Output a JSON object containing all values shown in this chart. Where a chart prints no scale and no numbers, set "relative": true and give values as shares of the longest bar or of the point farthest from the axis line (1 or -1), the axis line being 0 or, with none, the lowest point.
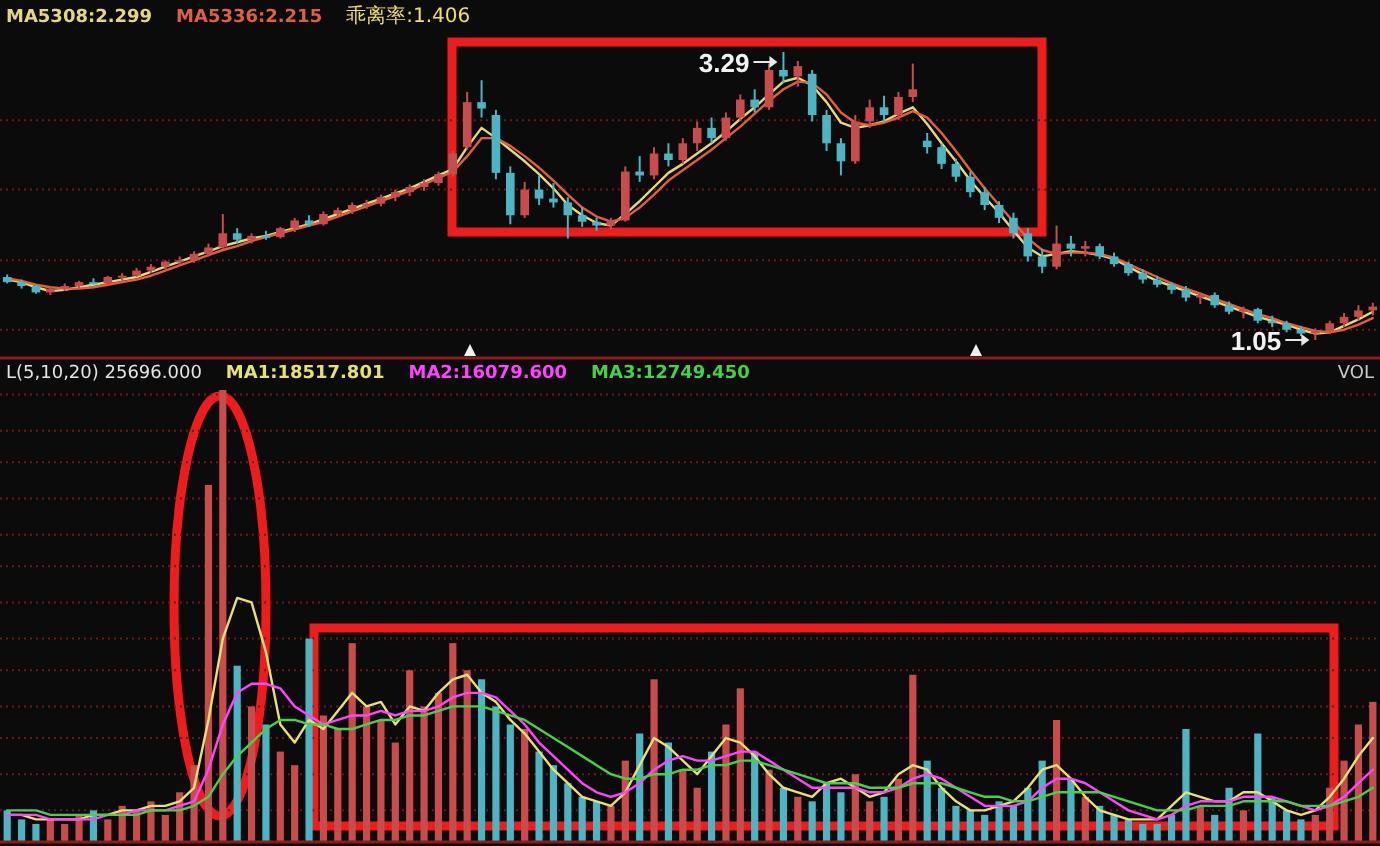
{
  "chart_data": [
    {
      "type": "candlestick",
      "categories": [
        null,
        null,
        null,
        null,
        null,
        null,
        null,
        null,
        null,
        null,
        null,
        null,
        null,
        null,
        null,
        null,
        null,
        null,
        null,
        null,
        null,
        null,
        null,
        null,
        null,
        null,
        null,
        null,
        null,
        null,
        null,
        null,
        null,
        null,
        null,
        null,
        null,
        null,
        null,
        null,
        null,
        null,
        null,
        null,
        null,
        null,
        null,
        null,
        null,
        null,
        null,
        null,
        null,
        null,
        null,
        null,
        null,
        null,
        null,
        null,
        null,
        null,
        null,
        null,
        null,
        null,
        null,
        null,
        null,
        null,
        null,
        null,
        null,
        null,
        null,
        null,
        null,
        null,
        null,
        null,
        null,
        null,
        null,
        null,
        null,
        null,
        null,
        null,
        null,
        null,
        null,
        null,
        null,
        null,
        null,
        null
      ],
      "ohlc": [
        [
          1.54,
          1.56,
          1.49,
          1.5
        ],
        [
          1.5,
          1.52,
          1.45,
          1.47
        ],
        [
          1.47,
          1.48,
          1.41,
          1.42
        ],
        [
          1.42,
          1.46,
          1.4,
          1.45
        ],
        [
          1.45,
          1.49,
          1.43,
          1.47
        ],
        [
          1.47,
          1.51,
          1.45,
          1.5
        ],
        [
          1.5,
          1.53,
          1.48,
          1.49
        ],
        [
          1.49,
          1.55,
          1.48,
          1.54
        ],
        [
          1.54,
          1.57,
          1.51,
          1.55
        ],
        [
          1.55,
          1.61,
          1.54,
          1.59
        ],
        [
          1.59,
          1.64,
          1.57,
          1.62
        ],
        [
          1.62,
          1.67,
          1.6,
          1.66
        ],
        [
          1.66,
          1.7,
          1.63,
          1.67
        ],
        [
          1.67,
          1.74,
          1.65,
          1.72
        ],
        [
          1.72,
          1.8,
          1.7,
          1.77
        ],
        [
          1.77,
          2.03,
          1.76,
          1.88
        ],
        [
          1.88,
          1.92,
          1.8,
          1.83
        ],
        [
          1.83,
          1.88,
          1.8,
          1.86
        ],
        [
          1.86,
          1.9,
          1.83,
          1.85
        ],
        [
          1.85,
          1.93,
          1.84,
          1.92
        ],
        [
          1.92,
          2.0,
          1.89,
          1.98
        ],
        [
          1.98,
          2.02,
          1.93,
          1.95
        ],
        [
          1.95,
          2.05,
          1.94,
          2.03
        ],
        [
          2.03,
          2.08,
          2.0,
          2.06
        ],
        [
          2.06,
          2.12,
          2.03,
          2.1
        ],
        [
          2.1,
          2.14,
          2.07,
          2.11
        ],
        [
          2.11,
          2.18,
          2.09,
          2.16
        ],
        [
          2.16,
          2.22,
          2.13,
          2.2
        ],
        [
          2.2,
          2.26,
          2.17,
          2.24
        ],
        [
          2.24,
          2.3,
          2.21,
          2.27
        ],
        [
          2.27,
          2.36,
          2.25,
          2.34
        ],
        [
          2.34,
          2.52,
          2.32,
          2.5
        ],
        [
          2.55,
          2.98,
          2.53,
          2.9
        ],
        [
          2.9,
          3.07,
          2.78,
          2.85
        ],
        [
          2.8,
          2.84,
          2.3,
          2.35
        ],
        [
          2.35,
          2.4,
          1.95,
          2.02
        ],
        [
          2.02,
          2.28,
          2.0,
          2.22
        ],
        [
          2.22,
          2.33,
          2.1,
          2.15
        ],
        [
          2.15,
          2.27,
          2.08,
          2.12
        ],
        [
          2.12,
          2.16,
          1.84,
          2.02
        ],
        [
          2.02,
          2.08,
          1.93,
          1.97
        ],
        [
          1.97,
          2.0,
          1.9,
          1.94
        ],
        [
          1.94,
          2.0,
          1.91,
          1.98
        ],
        [
          1.98,
          2.4,
          1.97,
          2.36
        ],
        [
          2.36,
          2.48,
          2.28,
          2.33
        ],
        [
          2.33,
          2.55,
          2.3,
          2.5
        ],
        [
          2.5,
          2.58,
          2.4,
          2.45
        ],
        [
          2.45,
          2.62,
          2.42,
          2.58
        ],
        [
          2.58,
          2.75,
          2.52,
          2.7
        ],
        [
          2.7,
          2.78,
          2.58,
          2.62
        ],
        [
          2.62,
          2.82,
          2.6,
          2.78
        ],
        [
          2.78,
          2.96,
          2.75,
          2.92
        ],
        [
          2.92,
          3.0,
          2.82,
          2.86
        ],
        [
          2.86,
          3.2,
          2.84,
          3.15
        ],
        [
          3.15,
          3.29,
          3.05,
          3.1
        ],
        [
          3.1,
          3.22,
          3.02,
          3.18
        ],
        [
          3.12,
          3.15,
          2.75,
          2.8
        ],
        [
          2.8,
          2.84,
          2.52,
          2.58
        ],
        [
          2.58,
          2.62,
          2.33,
          2.44
        ],
        [
          2.44,
          2.8,
          2.42,
          2.75
        ],
        [
          2.75,
          2.92,
          2.7,
          2.86
        ],
        [
          2.86,
          2.95,
          2.74,
          2.8
        ],
        [
          2.8,
          2.98,
          2.76,
          2.94
        ],
        [
          2.94,
          3.2,
          2.9,
          3.0
        ],
        [
          2.6,
          2.66,
          2.5,
          2.55
        ],
        [
          2.55,
          2.58,
          2.38,
          2.42
        ],
        [
          2.42,
          2.46,
          2.28,
          2.32
        ],
        [
          2.32,
          2.36,
          2.16,
          2.2
        ],
        [
          2.2,
          2.24,
          2.06,
          2.1
        ],
        [
          2.1,
          2.13,
          1.96,
          2.0
        ],
        [
          2.0,
          2.04,
          1.84,
          1.88
        ],
        [
          1.88,
          1.92,
          1.66,
          1.7
        ],
        [
          1.7,
          1.76,
          1.57,
          1.62
        ],
        [
          1.62,
          1.94,
          1.6,
          1.8
        ],
        [
          1.8,
          1.86,
          1.7,
          1.76
        ],
        [
          1.76,
          1.82,
          1.7,
          1.78
        ],
        [
          1.78,
          1.8,
          1.68,
          1.7
        ],
        [
          1.7,
          1.73,
          1.62,
          1.64
        ],
        [
          1.64,
          1.66,
          1.55,
          1.57
        ],
        [
          1.57,
          1.6,
          1.49,
          1.52
        ],
        [
          1.52,
          1.55,
          1.46,
          1.48
        ],
        [
          1.48,
          1.5,
          1.41,
          1.44
        ],
        [
          1.44,
          1.47,
          1.35,
          1.38
        ],
        [
          1.38,
          1.42,
          1.33,
          1.4
        ],
        [
          1.4,
          1.42,
          1.3,
          1.32
        ],
        [
          1.32,
          1.35,
          1.25,
          1.27
        ],
        [
          1.27,
          1.31,
          1.22,
          1.29
        ],
        [
          1.29,
          1.3,
          1.18,
          1.2
        ],
        [
          1.2,
          1.24,
          1.15,
          1.18
        ],
        [
          1.18,
          1.2,
          1.11,
          1.13
        ],
        [
          1.13,
          1.16,
          1.08,
          1.1
        ],
        [
          1.1,
          1.14,
          1.05,
          1.12
        ],
        [
          1.12,
          1.2,
          1.1,
          1.18
        ],
        [
          1.18,
          1.26,
          1.15,
          1.23
        ],
        [
          1.23,
          1.32,
          1.2,
          1.28
        ],
        [
          1.28,
          1.34,
          1.24,
          1.31
        ]
      ],
      "value_labels": [
        null,
        null,
        null,
        null,
        null,
        null,
        null,
        null,
        null,
        null,
        null,
        null,
        null,
        null,
        null,
        null,
        null,
        null,
        null,
        null,
        null,
        null,
        null,
        null,
        null,
        null,
        null,
        null,
        null,
        null,
        null,
        null,
        null,
        null,
        null,
        null,
        null,
        null,
        null,
        null,
        null,
        null,
        null,
        null,
        null,
        null,
        null,
        null,
        null,
        null,
        null,
        null,
        null,
        null,
        "3.29",
        null,
        null,
        null,
        null,
        null,
        null,
        null,
        null,
        null,
        null,
        null,
        null,
        null,
        null,
        null,
        null,
        null,
        null,
        null,
        null,
        null,
        null,
        null,
        null,
        null,
        null,
        null,
        null,
        null,
        null,
        null,
        null,
        null,
        null,
        null,
        null,
        "1.05",
        null,
        null,
        null,
        null
      ],
      "colors": [
        "#4cb4c2",
        "#4cb4c2",
        "#4cb4c2",
        "#c84c4c",
        "#c84c4c",
        "#c84c4c",
        "#4cb4c2",
        "#c84c4c",
        "#c84c4c",
        "#c84c4c",
        "#c84c4c",
        "#c84c4c",
        "#c84c4c",
        "#c84c4c",
        "#c84c4c",
        "#c84c4c",
        "#4cb4c2",
        "#c84c4c",
        "#4cb4c2",
        "#c84c4c",
        "#c84c4c",
        "#4cb4c2",
        "#c84c4c",
        "#c84c4c",
        "#c84c4c",
        "#c84c4c",
        "#c84c4c",
        "#c84c4c",
        "#c84c4c",
        "#c84c4c",
        "#c84c4c",
        "#c84c4c",
        "#c84c4c",
        "#4cb4c2",
        "#4cb4c2",
        "#4cb4c2",
        "#c84c4c",
        "#4cb4c2",
        "#4cb4c2",
        "#4cb4c2",
        "#4cb4c2",
        "#4cb4c2",
        "#c84c4c",
        "#c84c4c",
        "#4cb4c2",
        "#c84c4c",
        "#4cb4c2",
        "#c84c4c",
        "#c84c4c",
        "#4cb4c2",
        "#c84c4c",
        "#c84c4c",
        "#4cb4c2",
        "#c84c4c",
        "#4cb4c2",
        "#c84c4c",
        "#4cb4c2",
        "#4cb4c2",
        "#4cb4c2",
        "#c84c4c",
        "#c84c4c",
        "#4cb4c2",
        "#c84c4c",
        "#c84c4c",
        "#4cb4c2",
        "#4cb4c2",
        "#4cb4c2",
        "#4cb4c2",
        "#4cb4c2",
        "#4cb4c2",
        "#4cb4c2",
        "#4cb4c2",
        "#4cb4c2",
        "#c84c4c",
        "#4cb4c2",
        "#c84c4c",
        "#4cb4c2",
        "#4cb4c2",
        "#4cb4c2",
        "#4cb4c2",
        "#4cb4c2",
        "#4cb4c2",
        "#4cb4c2",
        "#c84c4c",
        "#4cb4c2",
        "#4cb4c2",
        "#c84c4c",
        "#4cb4c2",
        "#4cb4c2",
        "#4cb4c2",
        "#4cb4c2",
        "#c84c4c",
        "#c84c4c",
        "#c84c4c",
        "#c84c4c",
        "#c84c4c"
      ],
      "series": [
        {
          "name": "MA5308:2.299",
          "type": "line",
          "color": "#e6d87a",
          "values": [
            1.52,
            1.5,
            1.46,
            1.43,
            1.44,
            1.46,
            1.48,
            1.5,
            1.52,
            1.54,
            1.58,
            1.62,
            1.66,
            1.7,
            1.74,
            1.78,
            1.81,
            1.84,
            1.86,
            1.89,
            1.92,
            1.95,
            1.99,
            2.03,
            2.07,
            2.11,
            2.15,
            2.19,
            2.23,
            2.28,
            2.33,
            2.38,
            2.55,
            2.7,
            2.62,
            2.53,
            2.44,
            2.34,
            2.23,
            2.1,
            2.02,
            1.96,
            1.94,
            2.03,
            2.13,
            2.24,
            2.35,
            2.42,
            2.5,
            2.58,
            2.67,
            2.77,
            2.86,
            2.96,
            3.06,
            3.09,
            3.03,
            2.9,
            2.74,
            2.7,
            2.72,
            2.75,
            2.81,
            2.86,
            2.73,
            2.58,
            2.44,
            2.29,
            2.16,
            2.04,
            1.9,
            1.77,
            1.7,
            1.72,
            1.74,
            1.73,
            1.71,
            1.68,
            1.62,
            1.56,
            1.51,
            1.47,
            1.43,
            1.39,
            1.35,
            1.31,
            1.27,
            1.23,
            1.2,
            1.17,
            1.13,
            1.1,
            1.11,
            1.16,
            1.21,
            1.27
          ]
        },
        {
          "name": "MA5336:2.215",
          "type": "line",
          "color": "#e0603a",
          "values": [
            1.53,
            1.51,
            1.48,
            1.46,
            1.45,
            1.45,
            1.46,
            1.48,
            1.5,
            1.52,
            1.55,
            1.59,
            1.63,
            1.67,
            1.71,
            1.75,
            1.78,
            1.82,
            1.85,
            1.88,
            1.91,
            1.94,
            1.97,
            2.01,
            2.05,
            2.09,
            2.13,
            2.17,
            2.21,
            2.26,
            2.31,
            2.36,
            2.48,
            2.62,
            2.62,
            2.56,
            2.48,
            2.39,
            2.29,
            2.18,
            2.08,
            2.01,
            1.97,
            2.0,
            2.08,
            2.18,
            2.29,
            2.37,
            2.45,
            2.53,
            2.62,
            2.71,
            2.81,
            2.91,
            3.0,
            3.06,
            3.05,
            2.96,
            2.82,
            2.74,
            2.72,
            2.74,
            2.78,
            2.83,
            2.78,
            2.66,
            2.52,
            2.37,
            2.23,
            2.1,
            1.97,
            1.84,
            1.75,
            1.72,
            1.73,
            1.73,
            1.72,
            1.69,
            1.64,
            1.59,
            1.54,
            1.49,
            1.45,
            1.41,
            1.37,
            1.33,
            1.29,
            1.25,
            1.22,
            1.18,
            1.15,
            1.12,
            1.11,
            1.13,
            1.17,
            1.22
          ]
        }
      ],
      "annotations": [
        "乖离率:1.406"
      ],
      "yticks": [
        {
          "value": 1.13,
          "label": null
        },
        {
          "value": 1.67,
          "label": null
        },
        {
          "value": 2.22,
          "label": null
        },
        {
          "value": 2.76,
          "label": null
        }
      ],
      "grid": "y",
      "legend": "top left"
    },
    {
      "type": "bar",
      "relative": true,
      "title": "L(5,10,20) 25696.000",
      "ylabel": "VOL",
      "categories": [
        null,
        null,
        null,
        null,
        null,
        null,
        null,
        null,
        null,
        null,
        null,
        null,
        null,
        null,
        null,
        null,
        null,
        null,
        null,
        null,
        null,
        null,
        null,
        null,
        null,
        null,
        null,
        null,
        null,
        null,
        null,
        null,
        null,
        null,
        null,
        null,
        null,
        null,
        null,
        null,
        null,
        null,
        null,
        null,
        null,
        null,
        null,
        null,
        null,
        null,
        null,
        null,
        null,
        null,
        null,
        null,
        null,
        null,
        null,
        null,
        null,
        null,
        null,
        null,
        null,
        null,
        null,
        null,
        null,
        null,
        null,
        null,
        null,
        null,
        null,
        null,
        null,
        null,
        null,
        null,
        null,
        null,
        null,
        null,
        null,
        null,
        null,
        null,
        null,
        null,
        null,
        null,
        null,
        null,
        null,
        null
      ],
      "series": [
        {
          "values": [
            0.07,
            0.05,
            0.04,
            0.05,
            0.04,
            0.06,
            0.07,
            0.05,
            0.08,
            0.07,
            0.09,
            0.06,
            0.11,
            0.17,
            0.79,
            1,
            0.39,
            0.3,
            0.26,
            0.2,
            0.17,
            0.45,
            0.28,
            0.25,
            0.44,
            0.3,
            0.27,
            0.22,
            0.38,
            0.3,
            0.33,
            0.44,
            0.38,
            0.36,
            0.3,
            0.26,
            0.25,
            0.2,
            0.17,
            0.13,
            0.1,
            0.09,
            0.08,
            0.18,
            0.24,
            0.36,
            0.22,
            0.16,
            0.12,
            0.2,
            0.26,
            0.34,
            0.2,
            0.16,
            0.12,
            0.1,
            0.09,
            0.13,
            0.11,
            0.15,
            0.09,
            0.1,
            0.14,
            0.37,
            0.18,
            0.12,
            0.08,
            0.07,
            0.06,
            0.09,
            0.08,
            0.12,
            0.18,
            0.27,
            0.14,
            0.1,
            0.08,
            0.06,
            0.05,
            0.04,
            0.04,
            0.06,
            0.25,
            0.08,
            0.06,
            0.12,
            0.07,
            0.24,
            0.1,
            0.07,
            0.05,
            0.06,
            0.12,
            0.18,
            0.26,
            0.31
          ],
          "colors": [
            "#4cb4c2",
            "#4cb4c2",
            "#4cb4c2",
            "#c84c4c",
            "#c84c4c",
            "#c84c4c",
            "#4cb4c2",
            "#c84c4c",
            "#c84c4c",
            "#c84c4c",
            "#c84c4c",
            "#c84c4c",
            "#c84c4c",
            "#c84c4c",
            "#c84c4c",
            "#c84c4c",
            "#4cb4c2",
            "#c84c4c",
            "#4cb4c2",
            "#c84c4c",
            "#c84c4c",
            "#4cb4c2",
            "#c84c4c",
            "#c84c4c",
            "#c84c4c",
            "#c84c4c",
            "#c84c4c",
            "#c84c4c",
            "#c84c4c",
            "#c84c4c",
            "#c84c4c",
            "#c84c4c",
            "#c84c4c",
            "#4cb4c2",
            "#4cb4c2",
            "#4cb4c2",
            "#c84c4c",
            "#4cb4c2",
            "#4cb4c2",
            "#4cb4c2",
            "#4cb4c2",
            "#4cb4c2",
            "#c84c4c",
            "#c84c4c",
            "#4cb4c2",
            "#c84c4c",
            "#4cb4c2",
            "#c84c4c",
            "#c84c4c",
            "#4cb4c2",
            "#c84c4c",
            "#c84c4c",
            "#4cb4c2",
            "#c84c4c",
            "#4cb4c2",
            "#c84c4c",
            "#4cb4c2",
            "#4cb4c2",
            "#4cb4c2",
            "#c84c4c",
            "#c84c4c",
            "#4cb4c2",
            "#c84c4c",
            "#c84c4c",
            "#4cb4c2",
            "#4cb4c2",
            "#4cb4c2",
            "#4cb4c2",
            "#4cb4c2",
            "#4cb4c2",
            "#4cb4c2",
            "#4cb4c2",
            "#4cb4c2",
            "#c84c4c",
            "#4cb4c2",
            "#c84c4c",
            "#4cb4c2",
            "#4cb4c2",
            "#4cb4c2",
            "#4cb4c2",
            "#4cb4c2",
            "#4cb4c2",
            "#4cb4c2",
            "#c84c4c",
            "#4cb4c2",
            "#4cb4c2",
            "#c84c4c",
            "#4cb4c2",
            "#4cb4c2",
            "#4cb4c2",
            "#4cb4c2",
            "#c84c4c",
            "#c84c4c",
            "#c84c4c",
            "#c84c4c",
            "#c84c4c"
          ]
        },
        {
          "name": "MA1:18517.801",
          "type": "line",
          "color": "#e8e070",
          "values": [
            0.06,
            0.06,
            0.05,
            0.05,
            0.05,
            0.05,
            0.06,
            0.06,
            0.07,
            0.07,
            0.08,
            0.08,
            0.09,
            0.12,
            0.27,
            0.45,
            0.54,
            0.53,
            0.42,
            0.26,
            0.22,
            0.27,
            0.25,
            0.29,
            0.33,
            0.3,
            0.31,
            0.26,
            0.3,
            0.29,
            0.33,
            0.36,
            0.37,
            0.33,
            0.31,
            0.27,
            0.24,
            0.2,
            0.16,
            0.13,
            0.1,
            0.09,
            0.08,
            0.11,
            0.17,
            0.23,
            0.21,
            0.18,
            0.15,
            0.19,
            0.23,
            0.22,
            0.19,
            0.15,
            0.12,
            0.11,
            0.1,
            0.13,
            0.14,
            0.12,
            0.1,
            0.11,
            0.15,
            0.17,
            0.16,
            0.12,
            0.09,
            0.07,
            0.07,
            0.08,
            0.09,
            0.12,
            0.16,
            0.17,
            0.14,
            0.1,
            0.07,
            0.06,
            0.05,
            0.05,
            0.05,
            0.08,
            0.11,
            0.1,
            0.09,
            0.09,
            0.11,
            0.11,
            0.09,
            0.07,
            0.06,
            0.07,
            0.1,
            0.14,
            0.19,
            0.23
          ]
        },
        {
          "name": "MA2:16079.600",
          "type": "line",
          "color": "#ff44ff",
          "values": [
            0.06,
            0.06,
            0.06,
            0.05,
            0.05,
            0.05,
            0.05,
            0.06,
            0.06,
            0.07,
            0.07,
            0.07,
            0.08,
            0.09,
            0.16,
            0.26,
            0.33,
            0.35,
            0.35,
            0.34,
            0.3,
            0.28,
            0.26,
            0.27,
            0.28,
            0.28,
            0.29,
            0.28,
            0.29,
            0.29,
            0.3,
            0.32,
            0.33,
            0.33,
            0.32,
            0.29,
            0.26,
            0.22,
            0.19,
            0.16,
            0.13,
            0.11,
            0.1,
            0.11,
            0.13,
            0.16,
            0.18,
            0.19,
            0.18,
            0.18,
            0.19,
            0.2,
            0.2,
            0.18,
            0.16,
            0.14,
            0.12,
            0.12,
            0.12,
            0.12,
            0.11,
            0.11,
            0.12,
            0.14,
            0.15,
            0.14,
            0.12,
            0.1,
            0.08,
            0.08,
            0.08,
            0.09,
            0.12,
            0.14,
            0.14,
            0.13,
            0.11,
            0.09,
            0.07,
            0.06,
            0.05,
            0.06,
            0.08,
            0.09,
            0.09,
            0.09,
            0.1,
            0.1,
            0.1,
            0.09,
            0.08,
            0.07,
            0.08,
            0.1,
            0.13,
            0.16
          ]
        },
        {
          "name": "MA3:12749.450",
          "type": "line",
          "color": "#48d048",
          "values": [
            0.07,
            0.07,
            0.07,
            0.06,
            0.06,
            0.06,
            0.06,
            0.06,
            0.06,
            0.06,
            0.07,
            0.07,
            0.07,
            0.08,
            0.1,
            0.15,
            0.19,
            0.22,
            0.25,
            0.27,
            0.27,
            0.26,
            0.26,
            0.25,
            0.25,
            0.26,
            0.27,
            0.27,
            0.28,
            0.28,
            0.29,
            0.3,
            0.3,
            0.3,
            0.29,
            0.28,
            0.27,
            0.25,
            0.23,
            0.21,
            0.19,
            0.17,
            0.15,
            0.14,
            0.14,
            0.15,
            0.15,
            0.16,
            0.16,
            0.17,
            0.17,
            0.18,
            0.18,
            0.17,
            0.16,
            0.15,
            0.14,
            0.13,
            0.13,
            0.13,
            0.12,
            0.12,
            0.12,
            0.13,
            0.13,
            0.13,
            0.12,
            0.11,
            0.1,
            0.1,
            0.09,
            0.09,
            0.1,
            0.11,
            0.11,
            0.11,
            0.11,
            0.1,
            0.09,
            0.08,
            0.07,
            0.07,
            0.07,
            0.08,
            0.08,
            0.08,
            0.09,
            0.09,
            0.09,
            0.09,
            0.08,
            0.08,
            0.08,
            0.09,
            0.1,
            0.12
          ]
        }
      ],
      "ref_lines": [
        {
          "axis": "y",
          "value": 0.07,
          "color": "#6e1818",
          "line_style": "dotted"
        },
        {
          "axis": "y",
          "value": 0.15,
          "color": "#6e1818",
          "line_style": "dotted"
        },
        {
          "axis": "y",
          "value": 0.23,
          "color": "#6e1818",
          "line_style": "dotted"
        },
        {
          "axis": "y",
          "value": 0.3,
          "color": "#6e1818",
          "line_style": "dotted"
        },
        {
          "axis": "y",
          "value": 0.38,
          "color": "#6e1818",
          "line_style": "dotted"
        },
        {
          "axis": "y",
          "value": 0.45,
          "color": "#6e1818",
          "line_style": "dotted"
        },
        {
          "axis": "y",
          "value": 0.53,
          "color": "#6e1818",
          "line_style": "dotted"
        },
        {
          "axis": "y",
          "value": 0.61,
          "color": "#6e1818",
          "line_style": "dotted"
        },
        {
          "axis": "y",
          "value": 0.68,
          "color": "#6e1818",
          "line_style": "dotted"
        },
        {
          "axis": "y",
          "value": 0.76,
          "color": "#6e1818",
          "line_style": "dotted"
        },
        {
          "axis": "y",
          "value": 0.84,
          "color": "#6e1818",
          "line_style": "dotted"
        },
        {
          "axis": "y",
          "value": 0.91,
          "color": "#6e1818",
          "line_style": "dotted"
        },
        {
          "axis": "y",
          "value": 0.99,
          "color": "#6e1818",
          "line_style": "dotted"
        }
      ],
      "legend": "top left"
    }
  ]
}
